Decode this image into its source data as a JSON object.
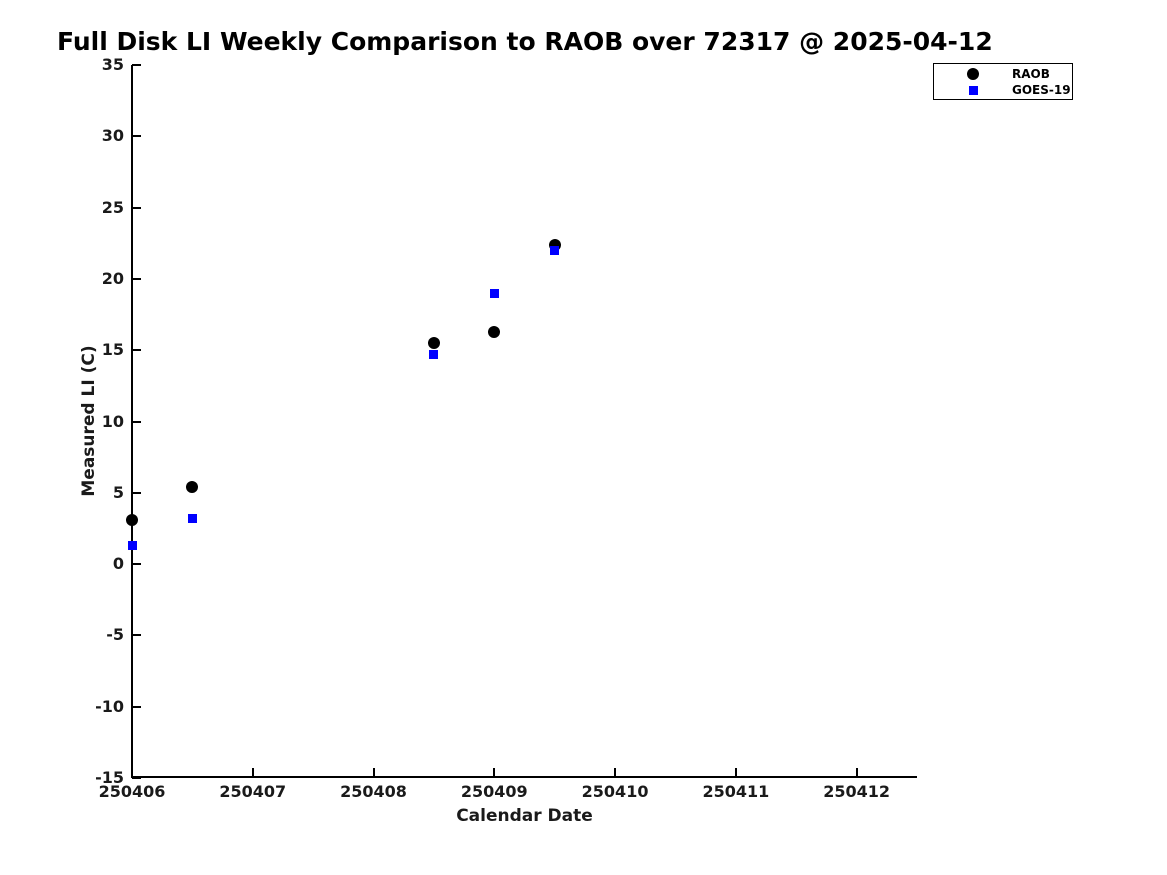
{
  "figure": {
    "title": "Full Disk LI Weekly Comparison to RAOB over 72317 @ 2025-04-12"
  },
  "chart_data": {
    "type": "scatter",
    "title": "Full Disk LI Weekly Comparison to RAOB over 72317 @ 2025-04-12",
    "xlabel": "Calendar Date",
    "ylabel": "Measured LI (C)",
    "xlim": [
      250406,
      250412.5
    ],
    "ylim": [
      -15,
      35
    ],
    "x_ticks": [
      250406,
      250407,
      250408,
      250409,
      250410,
      250411,
      250412
    ],
    "y_ticks": [
      35,
      30,
      25,
      20,
      15,
      10,
      5,
      0,
      -5,
      -10,
      -15
    ],
    "grid": false,
    "legend_position": "top-right",
    "series": [
      {
        "name": "RAOB",
        "marker": "circle",
        "color": "#000000",
        "x": [
          250406,
          250406.5,
          250408.5,
          250409,
          250409.5
        ],
        "y": [
          3.1,
          5.4,
          15.5,
          16.3,
          22.4
        ]
      },
      {
        "name": "GOES-19",
        "marker": "square",
        "color": "#0000ff",
        "x": [
          250406,
          250406.5,
          250408.5,
          250409,
          250409.5
        ],
        "y": [
          1.3,
          3.2,
          14.7,
          19.0,
          22.0
        ]
      }
    ]
  },
  "colors": {
    "raob": "#000000",
    "goes19": "#0000ff",
    "axis": "#000000",
    "background": "#ffffff"
  }
}
